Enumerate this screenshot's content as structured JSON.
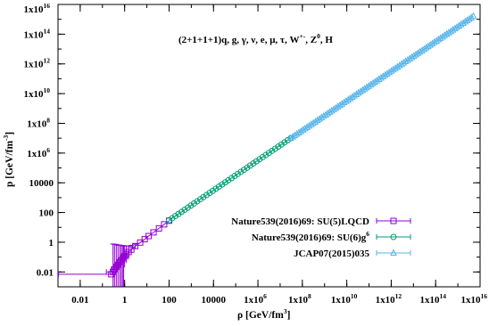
{
  "chart_data": {
    "type": "scatter",
    "xscale": "log",
    "yscale": "log",
    "xlim": [
      0.001,
      1e+16
    ],
    "ylim": [
      0.001,
      1e+16
    ],
    "xlabel": {
      "main": "ρ [GeV/fm",
      "sup": "3",
      "tail": "]"
    },
    "ylabel": {
      "main": "p [GeV/fm",
      "sup": "-3",
      "tail": "]"
    },
    "annotation": {
      "main": "(2+1+1+1)q, g, γ, ν, e, μ, τ, W",
      "sup1": "+-",
      "mid": ", Z",
      "sup2": "0",
      "tail": ", H"
    },
    "x_ticks": [
      {
        "value": 0.01,
        "base": "0.01",
        "sup": ""
      },
      {
        "value": 1,
        "base": "1",
        "sup": ""
      },
      {
        "value": 100,
        "base": "100",
        "sup": ""
      },
      {
        "value": 10000,
        "base": "10000",
        "sup": ""
      },
      {
        "value": 1000000.0,
        "base": "1x10",
        "sup": "6"
      },
      {
        "value": 100000000.0,
        "base": "1x10",
        "sup": "8"
      },
      {
        "value": 10000000000.0,
        "base": "1x10",
        "sup": "10"
      },
      {
        "value": 1000000000000.0,
        "base": "1x10",
        "sup": "12"
      },
      {
        "value": 100000000000000.0,
        "base": "1x10",
        "sup": "14"
      },
      {
        "value": 1e+16,
        "base": "1x10",
        "sup": "16"
      }
    ],
    "y_ticks": [
      {
        "value": 0.01,
        "base": "0.01",
        "sup": ""
      },
      {
        "value": 1,
        "base": "1",
        "sup": ""
      },
      {
        "value": 100,
        "base": "100",
        "sup": ""
      },
      {
        "value": 10000,
        "base": "10000",
        "sup": ""
      },
      {
        "value": 1000000.0,
        "base": "1x10",
        "sup": "6"
      },
      {
        "value": 100000000.0,
        "base": "1x10",
        "sup": "8"
      },
      {
        "value": 10000000000.0,
        "base": "1x10",
        "sup": "10"
      },
      {
        "value": 1000000000000.0,
        "base": "1x10",
        "sup": "12"
      },
      {
        "value": 100000000000000.0,
        "base": "1x10",
        "sup": "14"
      },
      {
        "value": 1e+16,
        "base": "1x10",
        "sup": "16"
      }
    ],
    "series": [
      {
        "name": "Nature539(2016)69: SU(5)LQCD",
        "name_sup": "",
        "color": "#9400d3",
        "marker": "square",
        "x": [
          0.25,
          0.3,
          0.35,
          0.42,
          0.5,
          0.6,
          0.7,
          0.8,
          0.9,
          1.0,
          1.2,
          1.5,
          2,
          3,
          5,
          8,
          12,
          20,
          35,
          60,
          100
        ],
        "y": [
          0.007,
          0.01,
          0.015,
          0.022,
          0.03,
          0.045,
          0.06,
          0.08,
          0.1,
          0.12,
          0.16,
          0.22,
          0.32,
          0.55,
          0.95,
          1.6,
          2.6,
          4.6,
          8.5,
          16,
          28
        ],
        "yerr_low": [
          0,
          0.009,
          0.014,
          0.021,
          0.029,
          0.044,
          0.059,
          0.079,
          0.099,
          0.1,
          0.12,
          0.15,
          0.18,
          0.2,
          0,
          0,
          0,
          0,
          0,
          0,
          0
        ],
        "yerr_high": [
          0,
          0.75,
          0.7,
          0.7,
          0.6,
          0.6,
          0.55,
          0.5,
          0.5,
          0.45,
          0.4,
          0.35,
          0.3,
          0.2,
          0,
          0,
          0,
          0,
          0,
          0,
          0
        ],
        "xerr_low": [
          0.249,
          0.15,
          0.1,
          0.1,
          0.1,
          0.1,
          0.1,
          0.1,
          0.1,
          0.1,
          0,
          0,
          0,
          0,
          0,
          0,
          0,
          0,
          0,
          0,
          0
        ],
        "xerr_high": [
          0.1,
          0.1,
          0.1,
          0.1,
          0.1,
          0.1,
          0.1,
          0.1,
          0.1,
          0.1,
          0,
          0,
          0,
          0,
          0,
          0,
          0,
          0,
          0,
          0,
          0
        ]
      },
      {
        "name": "Nature539(2016)69: SU(6)g",
        "name_sup": "6",
        "color": "#009e73",
        "marker": "circle",
        "x_range": [
          100,
          30000000.0
        ],
        "y_range": [
          30,
          10000000.0
        ],
        "n": 40
      },
      {
        "name": "JCAP07(2015)035",
        "name_sup": "",
        "color": "#56b4e9",
        "marker": "triangle",
        "x_range": [
          30000000.0,
          5000000000000000.0
        ],
        "y_range": [
          10000000.0,
          1600000000000000.0
        ],
        "n": 90
      }
    ],
    "legend_position": "bottom-right",
    "grid": false
  }
}
